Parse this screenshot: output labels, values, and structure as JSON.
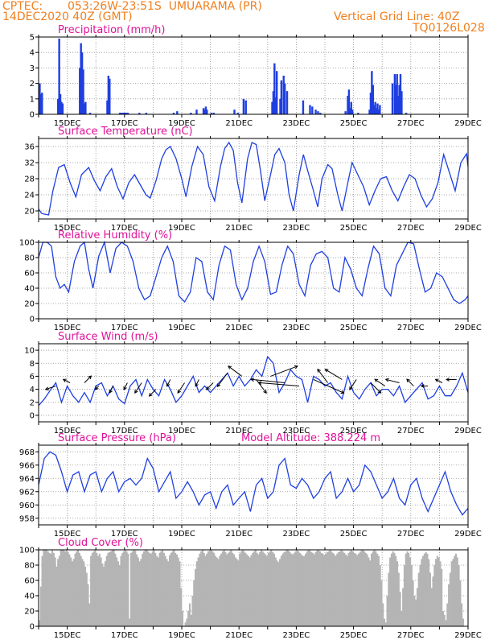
{
  "header": {
    "source": "CPTEC:",
    "location": "053:26W-23:51S  UMUARAMA (PR)",
    "run": "14DEC2020 40Z (GMT)",
    "grid_note": "Vertical Grid Line: 40Z",
    "code": "TQ0126L028"
  },
  "colors": {
    "header": "#f07f1e",
    "title": "#e0119a",
    "series": "#1f3fe0",
    "cloud": "#b4b4b4",
    "arrow": "#000000"
  },
  "x_axis": {
    "labels": [
      "15DEC",
      "17DEC",
      "19DEC",
      "21DEC",
      "23DEC",
      "25DEC",
      "27DEC",
      "29DEC"
    ],
    "day_range": [
      14.0,
      29.0
    ]
  },
  "chart_data": [
    {
      "type": "bar",
      "title": "Precipitation (mm/h)",
      "ylim": [
        0,
        5
      ],
      "yticks": [
        "0",
        "1",
        "2",
        "3",
        "4",
        "5"
      ],
      "x": [
        14.04,
        14.08,
        14.12,
        14.68,
        14.72,
        14.76,
        14.8,
        14.84,
        15.44,
        15.48,
        15.52,
        15.56,
        15.6,
        15.64,
        15.8,
        16.4,
        16.44,
        16.48,
        16.84,
        16.88,
        16.92,
        16.96,
        17.0,
        17.04,
        17.08,
        17.12,
        17.52,
        17.76,
        18.72,
        18.84,
        19.32,
        19.52,
        19.76,
        19.8,
        19.84,
        19.88,
        20.04,
        20.12,
        20.84,
        20.96,
        21.16,
        21.24,
        22.16,
        22.2,
        22.24,
        22.28,
        22.32,
        22.44,
        22.48,
        22.56,
        22.6,
        22.68,
        23.24,
        23.48,
        23.56,
        23.68,
        23.76,
        23.84,
        24.72,
        24.8,
        24.84,
        24.88,
        24.92,
        24.96,
        25.16,
        25.56,
        25.6,
        25.64,
        25.68,
        25.72,
        25.76,
        25.8,
        25.84,
        25.88,
        25.92,
        26.36,
        26.44,
        26.48,
        26.52,
        26.56,
        26.6,
        26.64,
        26.68,
        26.84
      ],
      "values": [
        2.0,
        1.3,
        1.4,
        1.0,
        4.9,
        1.3,
        0.8,
        0.7,
        3.0,
        4.6,
        4.0,
        2.9,
        0.7,
        0.8,
        0.1,
        0.9,
        2.5,
        2.3,
        0.1,
        0.1,
        0.1,
        0.1,
        0.1,
        0.1,
        0.1,
        0.1,
        0.1,
        0.1,
        0.1,
        0.2,
        0.1,
        0.3,
        0.4,
        0.3,
        0.5,
        0.3,
        0.1,
        0.1,
        0.3,
        0.1,
        1.0,
        0.9,
        0.8,
        1.5,
        3.3,
        1.1,
        2.8,
        1.0,
        2.2,
        2.5,
        2.0,
        1.5,
        0.9,
        0.6,
        0.5,
        0.3,
        0.2,
        0.1,
        0.2,
        1.2,
        1.6,
        0.4,
        0.8,
        0.3,
        0.1,
        0.3,
        1.4,
        2.8,
        1.9,
        0.6,
        0.8,
        0.4,
        0.7,
        0.3,
        0.6,
        2.0,
        2.6,
        1.9,
        2.6,
        1.2,
        1.9,
        2.6,
        1.5,
        0.1
      ]
    },
    {
      "type": "line",
      "title": "Surface Temperature (nC)",
      "ylim": [
        18,
        38
      ],
      "yticks": [
        "20",
        "24",
        "28",
        "32",
        "36"
      ],
      "x": [
        14.0,
        14.1,
        14.2,
        14.35,
        14.5,
        14.7,
        14.9,
        15.1,
        15.3,
        15.5,
        15.75,
        15.95,
        16.15,
        16.35,
        16.55,
        16.75,
        16.95,
        17.15,
        17.35,
        17.55,
        17.75,
        17.9,
        18.1,
        18.3,
        18.45,
        18.6,
        18.8,
        19.0,
        19.15,
        19.35,
        19.55,
        19.75,
        19.95,
        20.15,
        20.35,
        20.5,
        20.65,
        20.8,
        20.95,
        21.1,
        21.3,
        21.45,
        21.6,
        21.75,
        21.9,
        22.1,
        22.25,
        22.4,
        22.6,
        22.75,
        22.9,
        23.1,
        23.25,
        23.4,
        23.6,
        23.75,
        23.9,
        24.1,
        24.25,
        24.45,
        24.6,
        24.8,
        24.95,
        25.15,
        25.35,
        25.55,
        25.75,
        25.95,
        26.15,
        26.35,
        26.55,
        26.75,
        26.95,
        27.15,
        27.35,
        27.55,
        27.75,
        27.95,
        28.15,
        28.35,
        28.55,
        28.75,
        28.95,
        29.0
      ],
      "values": [
        20.5,
        19.4,
        19.2,
        19.0,
        25.0,
        30.8,
        31.5,
        27.0,
        23.5,
        29.0,
        30.8,
        27.5,
        25.0,
        28.5,
        30.5,
        26.0,
        23.0,
        27.0,
        29.0,
        26.5,
        24.0,
        23.2,
        27.5,
        33.0,
        35.2,
        36.0,
        33.0,
        28.0,
        23.5,
        31.0,
        36.0,
        34.0,
        26.0,
        22.5,
        31.0,
        35.5,
        37.0,
        35.0,
        27.0,
        22.0,
        33.0,
        37.0,
        36.5,
        30.0,
        22.5,
        29.0,
        34.0,
        35.5,
        32.0,
        24.0,
        20.0,
        29.0,
        34.0,
        30.0,
        25.0,
        21.0,
        28.0,
        31.5,
        30.5,
        24.0,
        20.0,
        27.0,
        32.0,
        29.0,
        26.0,
        21.5,
        25.0,
        28.0,
        28.5,
        25.0,
        22.5,
        26.0,
        29.0,
        28.0,
        24.0,
        21.0,
        23.0,
        27.0,
        34.0,
        29.5,
        25.0,
        32.0,
        34.2,
        31.0
      ]
    },
    {
      "type": "line",
      "title": "Relative Humidity (%)",
      "ylim": [
        0,
        100
      ],
      "yticks": [
        "0",
        "20",
        "40",
        "60",
        "80",
        "100"
      ],
      "x": [
        14.0,
        14.15,
        14.3,
        14.45,
        14.6,
        14.75,
        14.9,
        15.05,
        15.25,
        15.45,
        15.6,
        15.75,
        15.9,
        16.1,
        16.3,
        16.5,
        16.7,
        16.9,
        17.1,
        17.3,
        17.5,
        17.7,
        17.9,
        18.1,
        18.3,
        18.5,
        18.7,
        18.9,
        19.1,
        19.3,
        19.5,
        19.7,
        19.9,
        20.1,
        20.3,
        20.5,
        20.7,
        20.9,
        21.1,
        21.3,
        21.5,
        21.7,
        21.9,
        22.1,
        22.3,
        22.5,
        22.7,
        22.9,
        23.1,
        23.3,
        23.5,
        23.7,
        23.9,
        24.1,
        24.3,
        24.5,
        24.7,
        24.9,
        25.1,
        25.3,
        25.5,
        25.7,
        25.9,
        26.1,
        26.3,
        26.5,
        26.7,
        26.9,
        27.1,
        27.3,
        27.5,
        27.7,
        27.9,
        28.1,
        28.3,
        28.5,
        28.7,
        28.9,
        29.0
      ],
      "values": [
        80,
        100,
        100,
        95,
        55,
        40,
        45,
        35,
        75,
        95,
        100,
        65,
        40,
        82,
        100,
        60,
        92,
        100,
        95,
        75,
        40,
        25,
        30,
        55,
        80,
        95,
        75,
        30,
        22,
        35,
        80,
        75,
        35,
        25,
        70,
        95,
        90,
        45,
        25,
        40,
        75,
        95,
        75,
        32,
        35,
        70,
        95,
        85,
        45,
        30,
        70,
        85,
        88,
        80,
        40,
        35,
        80,
        65,
        40,
        30,
        65,
        95,
        85,
        40,
        30,
        70,
        85,
        100,
        98,
        65,
        35,
        40,
        60,
        55,
        40,
        25,
        20,
        25,
        30
      ]
    },
    {
      "type": "line",
      "title": "Surface Wind (m/s)",
      "ylim": [
        -1,
        11
      ],
      "yticks": [
        "0",
        "2",
        "4",
        "6",
        "8",
        "10"
      ],
      "x": [
        14.0,
        14.2,
        14.4,
        14.6,
        14.8,
        15.0,
        15.2,
        15.4,
        15.6,
        15.8,
        16.0,
        16.2,
        16.4,
        16.6,
        16.8,
        17.0,
        17.2,
        17.4,
        17.6,
        17.8,
        18.0,
        18.2,
        18.4,
        18.6,
        18.8,
        19.0,
        19.2,
        19.4,
        19.6,
        19.8,
        20.0,
        20.2,
        20.4,
        20.6,
        20.8,
        21.0,
        21.2,
        21.4,
        21.6,
        21.8,
        22.0,
        22.2,
        22.4,
        22.6,
        22.8,
        23.0,
        23.2,
        23.4,
        23.6,
        23.8,
        24.0,
        24.2,
        24.4,
        24.6,
        24.8,
        25.0,
        25.2,
        25.4,
        25.6,
        25.8,
        26.0,
        26.2,
        26.4,
        26.6,
        26.8,
        27.0,
        27.2,
        27.4,
        27.6,
        27.8,
        28.0,
        28.2,
        28.4,
        28.6,
        28.8,
        29.0
      ],
      "values": [
        1.5,
        2.5,
        3.8,
        5.0,
        2.0,
        4.5,
        3.0,
        2.0,
        3.5,
        2.0,
        4.5,
        5.0,
        3.0,
        4.5,
        2.5,
        1.8,
        4.5,
        5.5,
        3.0,
        5.5,
        4.0,
        3.0,
        5.5,
        4.0,
        2.0,
        3.0,
        4.5,
        6.0,
        3.5,
        4.5,
        3.5,
        4.5,
        5.5,
        6.5,
        4.5,
        6.0,
        4.5,
        5.5,
        7.0,
        6.0,
        9.0,
        8.0,
        3.5,
        5.0,
        7.0,
        6.0,
        5.5,
        2.0,
        6.0,
        5.5,
        4.5,
        5.0,
        3.5,
        2.5,
        6.0,
        3.5,
        2.5,
        4.0,
        5.0,
        3.0,
        4.0,
        4.0,
        3.0,
        4.5,
        2.0,
        3.0,
        4.0,
        5.0,
        2.5,
        3.0,
        4.5,
        3.0,
        3.0,
        4.5,
        6.5,
        3.5
      ],
      "arrows_day": [
        14.6,
        15.1,
        15.6,
        16.1,
        16.6,
        17.1,
        17.6,
        18.1,
        18.6,
        19.1,
        19.6,
        20.1,
        20.6,
        21.1,
        21.6,
        22.1,
        22.6,
        23.1,
        23.6,
        24.1,
        24.6,
        25.1,
        25.6,
        26.1,
        26.6,
        27.1,
        27.6,
        28.1,
        28.6
      ],
      "arrows_value": [
        4.5,
        5.0,
        5.0,
        4.5,
        4.5,
        5.0,
        5.0,
        4.0,
        5.5,
        5.0,
        5.5,
        5.0,
        6.5,
        6.0,
        5.5,
        6.0,
        5.0,
        4.5,
        5.5,
        5.0,
        5.5,
        5.5,
        5.0,
        4.5,
        5.0,
        4.5,
        4.5,
        5.0,
        5.5
      ],
      "arrows_u": [
        -3,
        -2,
        2,
        -1,
        -1,
        -1,
        -2,
        -2,
        -1,
        -2,
        -1,
        -2,
        -3,
        -4,
        3,
        8,
        -10,
        -12,
        9,
        -3,
        -5,
        -2,
        3,
        -3,
        -4,
        -2,
        -2,
        -2,
        -3
      ],
      "arrows_v": [
        -1,
        1,
        2,
        -1,
        -2,
        -2,
        -3,
        -2,
        -2,
        -3,
        -2,
        -2,
        -4,
        3,
        -4,
        3,
        1,
        1,
        -4,
        4,
        3,
        -3,
        -3,
        2,
        1,
        2,
        0,
        1,
        0
      ]
    },
    {
      "type": "line",
      "title": "Surface Pressure (hPa)",
      "annotation": "Model Altitude: 388.224 m",
      "ylim": [
        957,
        969
      ],
      "yticks": [
        "958",
        "960",
        "962",
        "964",
        "966",
        "968"
      ],
      "x": [
        14.0,
        14.2,
        14.4,
        14.6,
        14.8,
        15.0,
        15.2,
        15.4,
        15.6,
        15.8,
        16.0,
        16.2,
        16.4,
        16.6,
        16.8,
        17.0,
        17.2,
        17.4,
        17.6,
        17.8,
        18.0,
        18.2,
        18.4,
        18.6,
        18.8,
        19.0,
        19.2,
        19.4,
        19.6,
        19.8,
        20.0,
        20.2,
        20.4,
        20.6,
        20.8,
        21.0,
        21.2,
        21.4,
        21.6,
        21.8,
        22.0,
        22.2,
        22.4,
        22.6,
        22.8,
        23.0,
        23.2,
        23.4,
        23.6,
        23.8,
        24.0,
        24.2,
        24.4,
        24.6,
        24.8,
        25.0,
        25.2,
        25.4,
        25.6,
        25.8,
        26.0,
        26.2,
        26.4,
        26.6,
        26.8,
        27.0,
        27.2,
        27.4,
        27.6,
        27.8,
        28.0,
        28.2,
        28.4,
        28.6,
        28.8,
        29.0
      ],
      "values": [
        963,
        967,
        968,
        967.5,
        965,
        962,
        964.5,
        965,
        962,
        964.5,
        965,
        962,
        964,
        965,
        962,
        963.5,
        964,
        963,
        964,
        967,
        965.5,
        962,
        963.5,
        965,
        961,
        962,
        963.5,
        962,
        960,
        961.5,
        962,
        959.5,
        962,
        963,
        960,
        961,
        962,
        959,
        963,
        964,
        961,
        962,
        966,
        967,
        963,
        962.5,
        964,
        963,
        961,
        962,
        964,
        965,
        961,
        962,
        964,
        962,
        963,
        966,
        965,
        963,
        961,
        962,
        964,
        961,
        960,
        963,
        964,
        961,
        959,
        961,
        963,
        965,
        962,
        960,
        958.5,
        959.5
      ]
    },
    {
      "type": "bar",
      "title": "Cloud Cover (%)",
      "ylim": [
        0,
        100
      ],
      "yticks": [
        "0",
        "20",
        "40",
        "60",
        "80",
        "100"
      ],
      "x_start": 14.0,
      "x_step": 0.05,
      "values": [
        8,
        52,
        92,
        100,
        100,
        100,
        98,
        96,
        95,
        100,
        96,
        90,
        78,
        88,
        92,
        100,
        100,
        100,
        98,
        100,
        97,
        94,
        90,
        85,
        88,
        95,
        98,
        100,
        96,
        92,
        88,
        85,
        78,
        70,
        55,
        30,
        92,
        96,
        98,
        100,
        96,
        92,
        95,
        90,
        82,
        78,
        85,
        92,
        96,
        97,
        98,
        100,
        100,
        95,
        90,
        85,
        80,
        92,
        96,
        98,
        100,
        98,
        95,
        10,
        96,
        98,
        100,
        99,
        94,
        90,
        85,
        88,
        95,
        98,
        100,
        100,
        98,
        96,
        95,
        98,
        100,
        96,
        92,
        90,
        96,
        98,
        100,
        96,
        92,
        88,
        85,
        93,
        96,
        98,
        100,
        96,
        94,
        90,
        85,
        50,
        20,
        0,
        5,
        10,
        20,
        30,
        15,
        40,
        60,
        75,
        85,
        90,
        95,
        98,
        100,
        96,
        92,
        95,
        98,
        99,
        100,
        98,
        96,
        92,
        90,
        88,
        92,
        95,
        98,
        100,
        97,
        94,
        96,
        98,
        100,
        96,
        94,
        90,
        88,
        86,
        95,
        98,
        100,
        98,
        96,
        94,
        92,
        90,
        93,
        96,
        98,
        100,
        96,
        94,
        97,
        100,
        98,
        96,
        94,
        92,
        96,
        98,
        100,
        97,
        95,
        90,
        86,
        84,
        88,
        92,
        95,
        97,
        98,
        100,
        99,
        97,
        95,
        94,
        96,
        98,
        100,
        98,
        96,
        94,
        92,
        92,
        95,
        98,
        100,
        99,
        97,
        96,
        94,
        97,
        99,
        100,
        98,
        96,
        95,
        93,
        95,
        97,
        98,
        100,
        98,
        96,
        94,
        92,
        95,
        97,
        98,
        100,
        98,
        96,
        94,
        92,
        96,
        98,
        100,
        98,
        96,
        95,
        93,
        95,
        97,
        99,
        100,
        98,
        96,
        94,
        90,
        86,
        95,
        98,
        100,
        98,
        95,
        92,
        80,
        60,
        30,
        10,
        5,
        40,
        70,
        90,
        95,
        98,
        96,
        92,
        85,
        70,
        45,
        20,
        50,
        80,
        95,
        98,
        96,
        90,
        80,
        60,
        40,
        35,
        50,
        70,
        80,
        88,
        92,
        95,
        97,
        95,
        88,
        70,
        50,
        65,
        80,
        88,
        92,
        90,
        85,
        75,
        20,
        15,
        8,
        30,
        55,
        70,
        85,
        88,
        92,
        95,
        90,
        80,
        60,
        30,
        10,
        0
      ]
    }
  ]
}
